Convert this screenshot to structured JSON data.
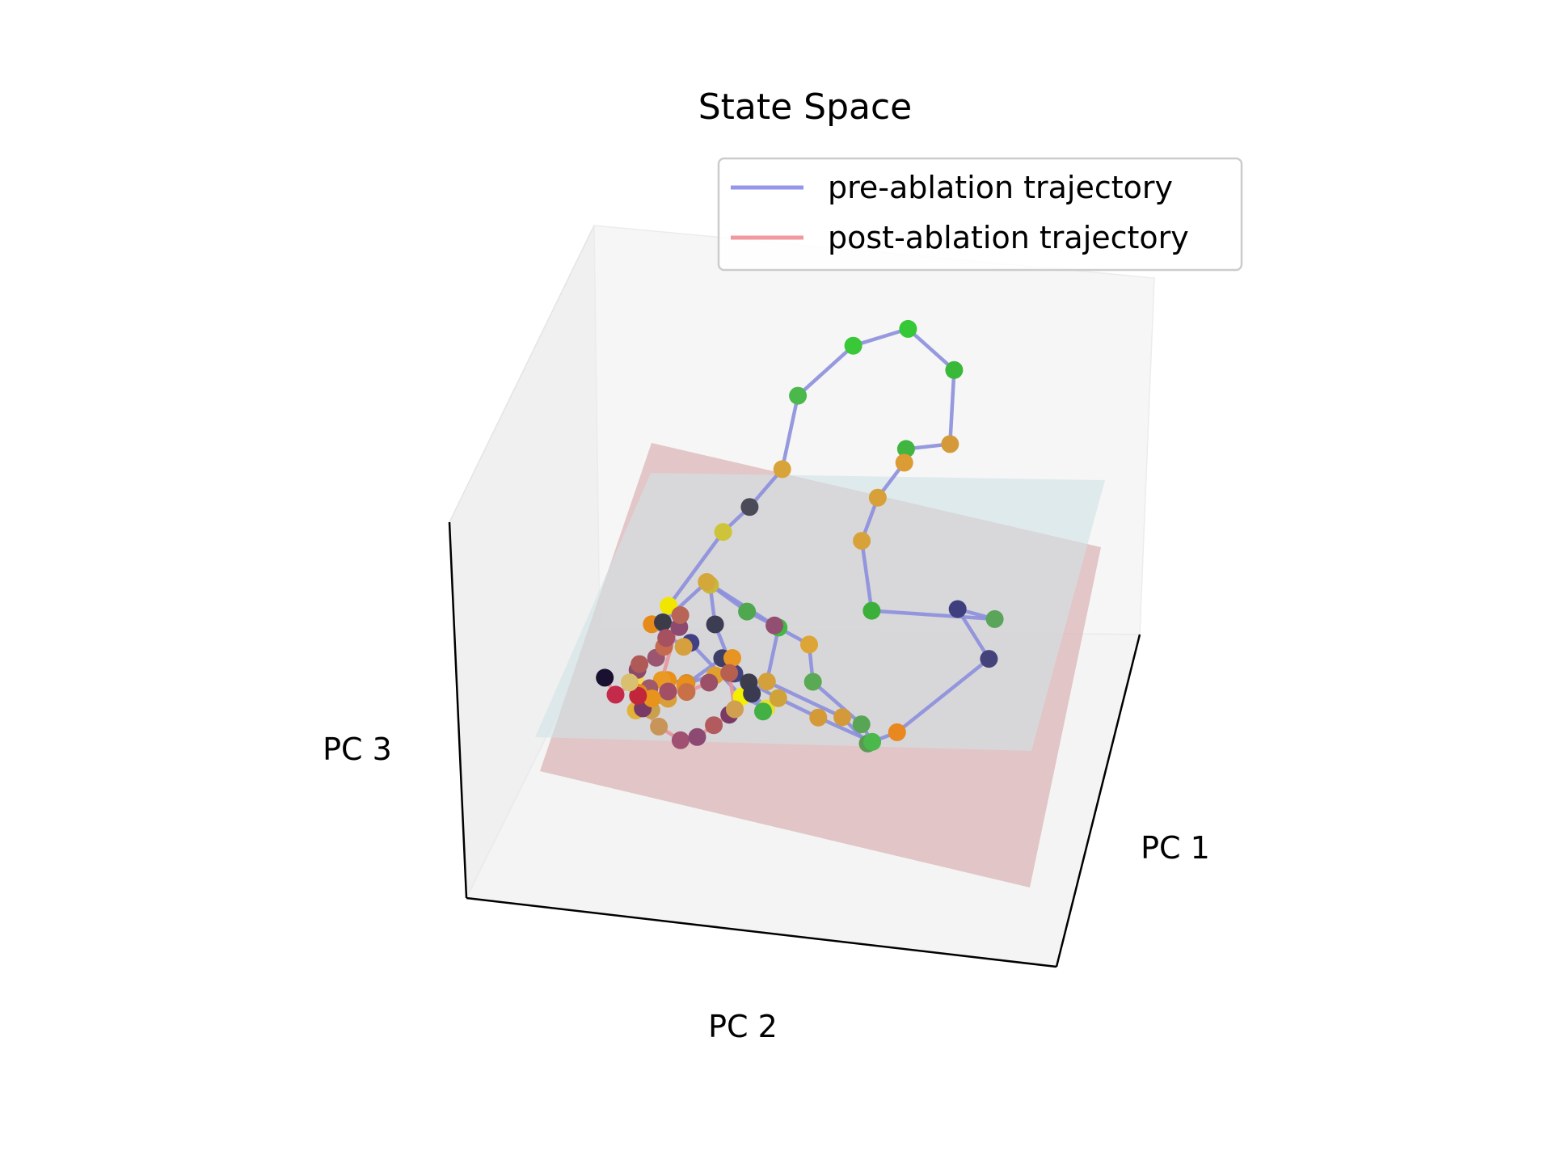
{
  "chart_data": {
    "type": "scatter",
    "projection": "3d",
    "title": "State Space",
    "axes": {
      "xlabel": "PC 1",
      "ylabel": "PC 2",
      "zlabel": "PC 3"
    },
    "grid": false,
    "legend": {
      "placement": "top-right",
      "entries": [
        {
          "label": "pre-ablation trajectory",
          "color": "#9497e8"
        },
        {
          "label": "post-ablation trajectory",
          "color": "#f09aa0"
        }
      ]
    },
    "colors": {
      "pane": "#f3f3f3",
      "pre_plane": "#d1e3e6",
      "post_plane": "#dcb5b7",
      "pre_line": "#8c8fdc",
      "post_line": "#e8939a"
    },
    "series": [
      {
        "name": "pre-ablation trajectory",
        "points": [
          [
            -1.74,
            -1.52,
            -0.44,
            "#f0e600"
          ],
          [
            -1.21,
            -1.27,
            0.21,
            "#cdc43a"
          ],
          [
            -0.95,
            -1.14,
            0.45,
            "#4a4a58"
          ],
          [
            -0.58,
            -0.85,
            0.85,
            "#d8a43a"
          ],
          [
            -0.4,
            -0.72,
            1.44,
            "#4ab84a"
          ],
          [
            0.1,
            -0.56,
            1.88,
            "#38c838"
          ],
          [
            0.5,
            -0.64,
            1.98,
            "#36c836"
          ],
          [
            0.98,
            -0.32,
            1.82,
            "#3ab83a"
          ],
          [
            1.11,
            0.12,
            1.46,
            "#d49a3a"
          ],
          [
            0.75,
            0.08,
            1.4,
            "#40b540"
          ],
          [
            0.65,
            -0.14,
            1.21,
            "#db9b35"
          ],
          [
            0.42,
            -0.19,
            0.93,
            "#d7a038"
          ],
          [
            0.26,
            -0.27,
            0.58,
            "#d8a23b"
          ],
          [
            0.47,
            0.09,
            0.22,
            "#3ab03a"
          ],
          [
            1.61,
            0.55,
            0.37,
            "#5ba55a"
          ],
          [
            1.22,
            0.29,
            0.33,
            "#3f3f80"
          ],
          [
            1.58,
            0.6,
            0.1,
            "#43427a"
          ],
          [
            1.25,
            1.63,
            -0.03,
            "#e8881f"
          ],
          [
            0.8,
            1.06,
            -0.35,
            "#5a9a52"
          ],
          [
            0.55,
            0.92,
            -0.22,
            "#d49a3a"
          ],
          [
            -0.23,
            0.42,
            -0.18,
            "#d4a03c"
          ],
          [
            -0.28,
            0.04,
            0.06,
            "#42b842"
          ],
          [
            -0.63,
            -0.23,
            0.06,
            "#4fa850"
          ],
          [
            -0.99,
            -0.42,
            0.17,
            "#c8b839"
          ],
          [
            -0.92,
            -0.33,
            -0.08,
            "#3c3c52"
          ],
          [
            -0.75,
            -0.27,
            -0.41,
            "#42437e"
          ],
          [
            -0.43,
            -0.08,
            -0.58,
            "#e4e02f"
          ],
          [
            -0.83,
            -0.62,
            -0.72,
            "#f3ef00"
          ],
          [
            -1.36,
            -0.97,
            -0.48,
            "#404083"
          ],
          [
            -1.48,
            -1.14,
            -0.58,
            "#d6a03e"
          ],
          [
            -1.82,
            -1.38,
            -0.52,
            "#e68a1c"
          ],
          [
            -1.56,
            -0.93,
            -0.32,
            "#3c3c48"
          ],
          [
            -1.12,
            -0.69,
            0.08,
            "#d3a73a"
          ],
          [
            -0.42,
            -0.24,
            -0.04,
            "#924f71"
          ],
          [
            0.05,
            0.28,
            0.04,
            "#dca535"
          ],
          [
            0.18,
            0.55,
            -0.12,
            "#5aa955"
          ],
          [
            0.66,
            0.82,
            -0.31,
            "#58a555"
          ],
          [
            0.72,
            0.76,
            -0.46,
            "#4ab84a"
          ],
          [
            0.18,
            0.45,
            -0.42,
            "#d49a38"
          ],
          [
            -0.22,
            0.22,
            -0.38,
            "#cfa23a"
          ],
          [
            -0.58,
            -0.12,
            -0.41,
            "#3c3c4c"
          ],
          [
            -0.97,
            -0.45,
            -0.5,
            "#e0a02e"
          ],
          [
            -1.26,
            -0.62,
            -0.63,
            "#d58f2e"
          ],
          [
            -1.48,
            -0.81,
            -0.69,
            "#e7901b"
          ],
          [
            -1.6,
            -0.78,
            -0.9,
            "#c8a04e"
          ],
          [
            -1.7,
            -1.0,
            -0.85,
            "#d6943a"
          ],
          [
            -1.66,
            -0.62,
            -0.84,
            "#e2b239"
          ],
          [
            -1.38,
            -0.55,
            -0.72,
            "#d99f39"
          ],
          [
            -1.21,
            -0.46,
            -0.58,
            "#e8901a"
          ],
          [
            -0.91,
            -0.44,
            -0.37,
            "#3e3e66"
          ],
          [
            -0.73,
            -0.18,
            -0.26,
            "#e89423"
          ],
          [
            -0.48,
            0.08,
            -0.41,
            "#3a3a50"
          ],
          [
            -0.34,
            0.22,
            -0.48,
            "#42b042"
          ]
        ]
      },
      {
        "name": "post-ablation trajectory",
        "points": [
          [
            -1.95,
            -0.75,
            -0.66,
            "#1a1030"
          ],
          [
            -1.81,
            -0.6,
            -0.72,
            "#c42a4a"
          ],
          [
            -1.68,
            -0.67,
            -0.65,
            "#f5d850"
          ],
          [
            -1.62,
            -0.56,
            -0.52,
            "#8c4a6a"
          ],
          [
            -1.55,
            -0.42,
            -0.42,
            "#b05a58"
          ],
          [
            -1.4,
            -0.37,
            -0.35,
            "#9a5670"
          ],
          [
            -1.31,
            -0.3,
            -0.24,
            "#c46a50"
          ],
          [
            -1.25,
            -0.19,
            -0.13,
            "#a65060"
          ],
          [
            -1.12,
            -0.12,
            -0.02,
            "#8c4a70"
          ],
          [
            -1.08,
            -0.04,
            0.1,
            "#b86456"
          ],
          [
            -1.3,
            -0.22,
            -0.45,
            "#e89a25"
          ],
          [
            -1.51,
            -0.51,
            -0.63,
            "#9e5a6a"
          ],
          [
            -1.7,
            -0.79,
            -0.78,
            "#e08a20"
          ],
          [
            -1.64,
            -0.71,
            -0.86,
            "#7a3a66"
          ],
          [
            -1.45,
            -0.54,
            -0.92,
            "#c89458"
          ],
          [
            -1.22,
            -0.38,
            -0.95,
            "#a05070"
          ],
          [
            -1.02,
            -0.2,
            -0.85,
            "#8c4a72"
          ],
          [
            -0.85,
            -0.1,
            -0.72,
            "#b25a5e"
          ],
          [
            -0.69,
            0.0,
            -0.6,
            "#7a3a66"
          ],
          [
            -0.6,
            0.12,
            -0.51,
            "#d0a050"
          ],
          [
            -0.71,
            -0.06,
            -0.32,
            "#b86050"
          ],
          [
            -0.93,
            -0.22,
            -0.46,
            "#9c5068"
          ],
          [
            -1.18,
            -0.41,
            -0.61,
            "#c87048"
          ],
          [
            -1.41,
            -0.63,
            -0.7,
            "#a24e64"
          ],
          [
            -1.57,
            -0.72,
            -0.79,
            "#e8941c"
          ],
          [
            -1.78,
            -0.98,
            -0.88,
            "#c2263a"
          ],
          [
            -1.86,
            -1.02,
            -0.8,
            "#d8c070"
          ]
        ]
      }
    ]
  }
}
